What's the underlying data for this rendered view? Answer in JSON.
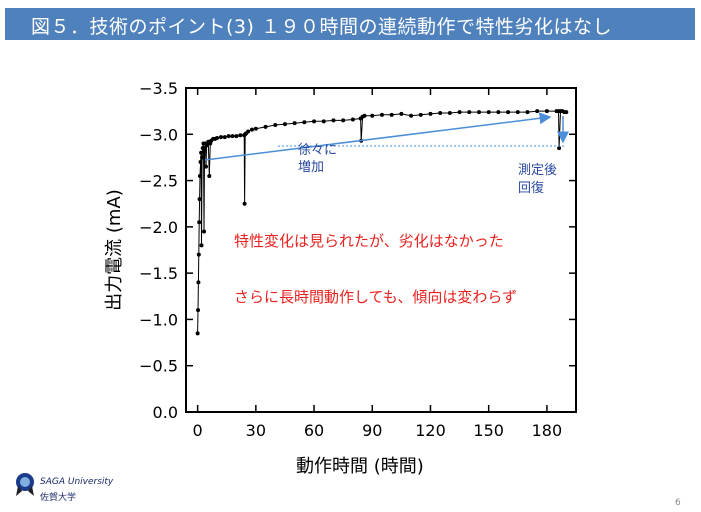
{
  "slide": {
    "title": "図５．技術のポイント(3) １９０時間の連続動作で特性劣化はなし",
    "page_number": "6",
    "logo_en": "SAGA University",
    "logo_jp": "佐賀大学"
  },
  "colors": {
    "title_bar": "#4f81bd",
    "annotation_red": "#e8231f",
    "annotation_blue": "#2a4aa0",
    "arrow_blue": "#4a8fd8",
    "data": "#000000"
  },
  "annotations": {
    "increase": [
      "徐々に",
      "増加"
    ],
    "recovery": [
      "測定後",
      "回復"
    ],
    "note1": "特性変化は見られたが、劣化はなかった",
    "note2": "さらに長時間動作しても、傾向は変わらず"
  },
  "chart_data": {
    "type": "scatter",
    "xlabel": "動作時間 (時間)",
    "ylabel": "出力電流 (mA)",
    "xlim": [
      -6,
      195
    ],
    "ylim": [
      0.0,
      -3.5
    ],
    "xticks": [
      0,
      30,
      60,
      90,
      120,
      150,
      180
    ],
    "yticks": [
      0.0,
      -0.5,
      -1.0,
      -1.5,
      -2.0,
      -2.5,
      -3.0,
      -3.5
    ],
    "ytick_labels": [
      "0.0",
      "−0.5",
      "−1.0",
      "−1.5",
      "−2.0",
      "−2.5",
      "−3.0",
      "−3.5"
    ],
    "grid": false,
    "series": [
      {
        "x": [
          0,
          0.2,
          0.4,
          0.6,
          0.8,
          1,
          1.2,
          1.5,
          1.8,
          2,
          2.3,
          2.6,
          3,
          3.3,
          3.6,
          4,
          4.3,
          4.6,
          5,
          5.5,
          6,
          6.5,
          7,
          8,
          9,
          10,
          12,
          14,
          16,
          18,
          20,
          22,
          24,
          24.2,
          24.5,
          25,
          26,
          28,
          30,
          35,
          40,
          45,
          50,
          55,
          60,
          65,
          70,
          75,
          80,
          84,
          84.3,
          85,
          86,
          90,
          95,
          100,
          105,
          110,
          115,
          120,
          125,
          130,
          135,
          140,
          145,
          150,
          155,
          160,
          165,
          170,
          175,
          180,
          185,
          186,
          186.3,
          187,
          188,
          189,
          190
        ],
        "y": [
          -0.85,
          -1.1,
          -1.4,
          -1.7,
          -2.05,
          -2.3,
          -2.55,
          -2.7,
          -2.8,
          -1.8,
          -2.75,
          -2.85,
          -2.9,
          -1.95,
          -2.85,
          -2.9,
          -2.65,
          -2.88,
          -2.9,
          -2.92,
          -2.55,
          -2.9,
          -2.93,
          -2.95,
          -2.95,
          -2.96,
          -2.97,
          -2.97,
          -2.98,
          -2.98,
          -2.98,
          -2.99,
          -2.99,
          -2.25,
          -3.0,
          -3.01,
          -3.03,
          -3.05,
          -3.06,
          -3.08,
          -3.1,
          -3.11,
          -3.12,
          -3.13,
          -3.14,
          -3.14,
          -3.15,
          -3.15,
          -3.16,
          -3.17,
          -2.93,
          -3.19,
          -3.2,
          -3.2,
          -3.21,
          -3.21,
          -3.22,
          -3.2,
          -3.21,
          -3.22,
          -3.23,
          -3.23,
          -3.24,
          -3.24,
          -3.24,
          -3.24,
          -3.24,
          -3.24,
          -3.24,
          -3.24,
          -3.25,
          -3.25,
          -3.25,
          -3.25,
          -2.85,
          -3.25,
          -3.25,
          -3.24,
          -3.24
        ]
      }
    ]
  }
}
